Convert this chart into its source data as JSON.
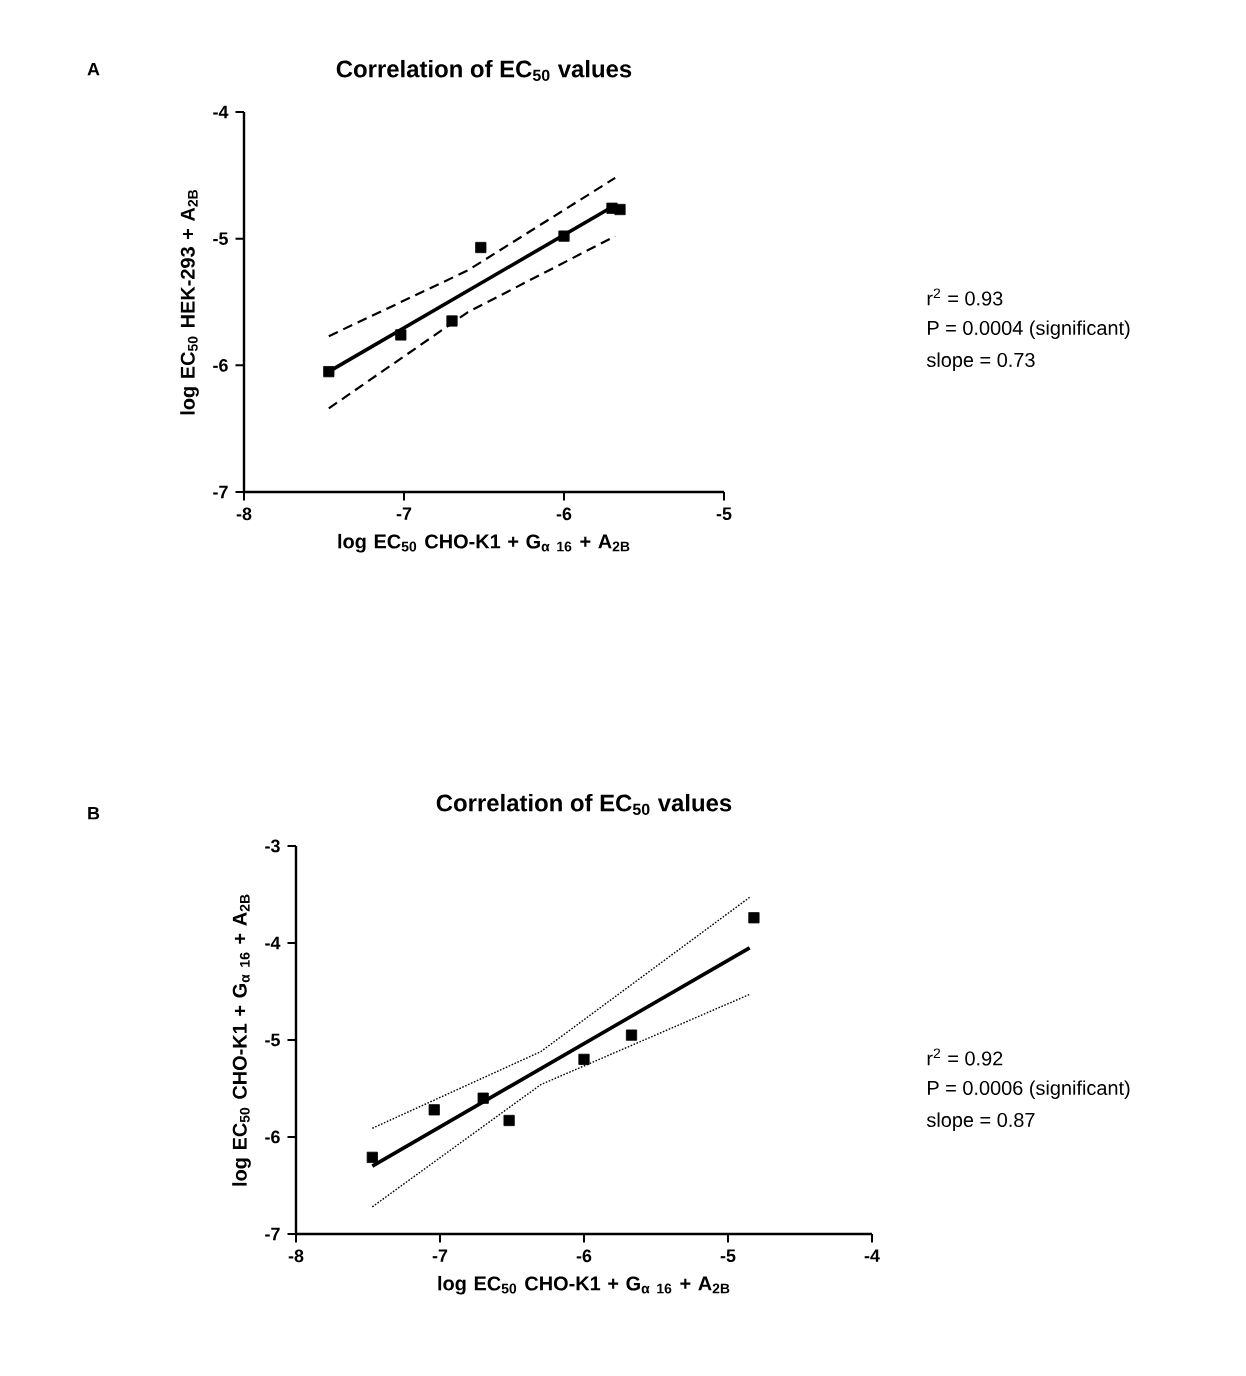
{
  "chart_data": [
    {
      "type": "scatter",
      "title": "Correlation of EC$_{50}$ values",
      "xlabel": "log EC$_{50}$ CHO-K1 + G$_{α 16}$ + A$_{2B}$",
      "ylabel": "log EC$_{50}$ HEK-293 + A$_{2B}$",
      "xlim": [
        -8,
        -5
      ],
      "ylim": [
        -7,
        -4
      ],
      "xticks": [
        -8,
        -7,
        -6,
        -5
      ],
      "yticks": [
        -7,
        -6,
        -5,
        -4
      ],
      "annotations": [
        "A",
        "r$^{2}$ = 0.93",
        "P = 0.0004 (significant)",
        "slope = 0.73"
      ],
      "series": [
        {
          "color": "#000000",
          "marker": "square",
          "x": [
            -7.47,
            -7.02,
            -6.7,
            -6.52,
            -6.0,
            -5.7,
            -5.65
          ],
          "values": [
            -6.05,
            -5.76,
            -5.65,
            -5.07,
            -4.98,
            -4.76,
            -4.77
          ]
        },
        {
          "type": "line",
          "color": "#000000",
          "line_style": "solid",
          "x": [
            -7.47,
            -5.7
          ],
          "values": [
            -6.05,
            -4.75
          ]
        },
        {
          "type": "line",
          "color": "#000000",
          "line_style": "dashed",
          "x": [
            -7.47,
            -6.6,
            -5.68
          ],
          "values": [
            -5.77,
            -5.25,
            -4.52
          ]
        },
        {
          "type": "line",
          "color": "#000000",
          "line_style": "dashed",
          "x": [
            -7.47,
            -6.6,
            -5.68
          ],
          "values": [
            -6.34,
            -5.58,
            -4.98
          ]
        }
      ]
    },
    {
      "type": "scatter",
      "title": "Correlation of EC$_{50}$ values",
      "xlabel": "log EC$_{50}$ CHO-K1 + G$_{α 16}$ + A$_{2B}$",
      "ylabel": "log EC$_{50}$ CHO-K1 + G$_{α 16}$ + A$_{2B}$",
      "xlim": [
        -8,
        -4
      ],
      "ylim": [
        -7,
        -3
      ],
      "xticks": [
        -8,
        -7,
        -6,
        -5,
        -4
      ],
      "yticks": [
        -7,
        -6,
        -5,
        -4,
        -3
      ],
      "annotations": [
        "B",
        "r$^{2}$ = 0.92",
        "P = 0.0006 (significant)",
        "slope = 0.87"
      ],
      "series": [
        {
          "color": "#000000",
          "marker": "square",
          "x": [
            -7.47,
            -7.04,
            -6.7,
            -6.52,
            -6.0,
            -5.67,
            -4.82
          ],
          "values": [
            -6.21,
            -5.72,
            -5.6,
            -5.83,
            -5.2,
            -4.95,
            -3.74
          ]
        },
        {
          "type": "line",
          "color": "#000000",
          "line_style": "solid",
          "x": [
            -7.47,
            -4.85
          ],
          "values": [
            -6.3,
            -4.05
          ]
        },
        {
          "type": "line",
          "color": "#000000",
          "line_style": "dotted",
          "x": [
            -7.47,
            -6.3,
            -4.85
          ],
          "values": [
            -5.91,
            -5.12,
            -3.53
          ]
        },
        {
          "type": "line",
          "color": "#000000",
          "line_style": "dotted",
          "x": [
            -7.47,
            -6.3,
            -4.85
          ],
          "values": [
            -6.72,
            -5.46,
            -4.53
          ]
        }
      ]
    }
  ]
}
